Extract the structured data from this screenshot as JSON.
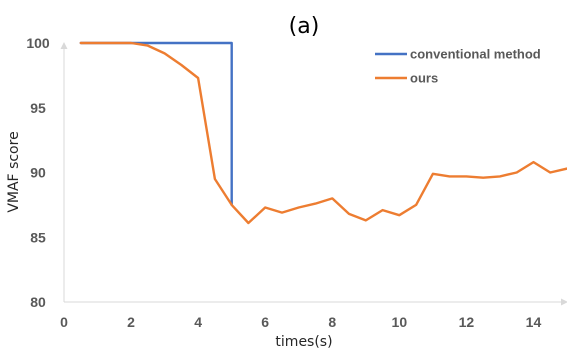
{
  "chart_data": {
    "type": "line",
    "title": "(a)",
    "xlabel": "times(s)",
    "ylabel": "VMAF score",
    "xlim": [
      0,
      15
    ],
    "ylim": [
      80,
      100
    ],
    "x_ticks": [
      0,
      2,
      4,
      6,
      8,
      10,
      12,
      14
    ],
    "y_ticks": [
      80,
      85,
      90,
      95,
      100
    ],
    "grid": false,
    "legend_position": "top-right",
    "series": [
      {
        "name": "conventional method",
        "color": "#4472C4",
        "points": [
          [
            0.5,
            100
          ],
          [
            5.0,
            100
          ],
          [
            5.0,
            87.5
          ]
        ]
      },
      {
        "name": "ours",
        "color": "#ED7D31",
        "points": [
          [
            0.5,
            100
          ],
          [
            1.0,
            100
          ],
          [
            1.5,
            100
          ],
          [
            2.0,
            100
          ],
          [
            2.5,
            99.8
          ],
          [
            3.0,
            99.2
          ],
          [
            3.5,
            98.3
          ],
          [
            4.0,
            97.3
          ],
          [
            4.5,
            89.5
          ],
          [
            5.0,
            87.5
          ],
          [
            5.5,
            86.1
          ],
          [
            6.0,
            87.3
          ],
          [
            6.5,
            86.9
          ],
          [
            7.0,
            87.3
          ],
          [
            7.5,
            87.6
          ],
          [
            8.0,
            88.0
          ],
          [
            8.5,
            86.8
          ],
          [
            9.0,
            86.3
          ],
          [
            9.5,
            87.1
          ],
          [
            10.0,
            86.7
          ],
          [
            10.5,
            87.5
          ],
          [
            11.0,
            89.9
          ],
          [
            11.5,
            89.7
          ],
          [
            12.0,
            89.7
          ],
          [
            12.5,
            89.6
          ],
          [
            13.0,
            89.7
          ],
          [
            13.5,
            90.0
          ],
          [
            14.0,
            90.8
          ],
          [
            14.5,
            90.0
          ],
          [
            15.0,
            90.3
          ]
        ]
      }
    ]
  }
}
